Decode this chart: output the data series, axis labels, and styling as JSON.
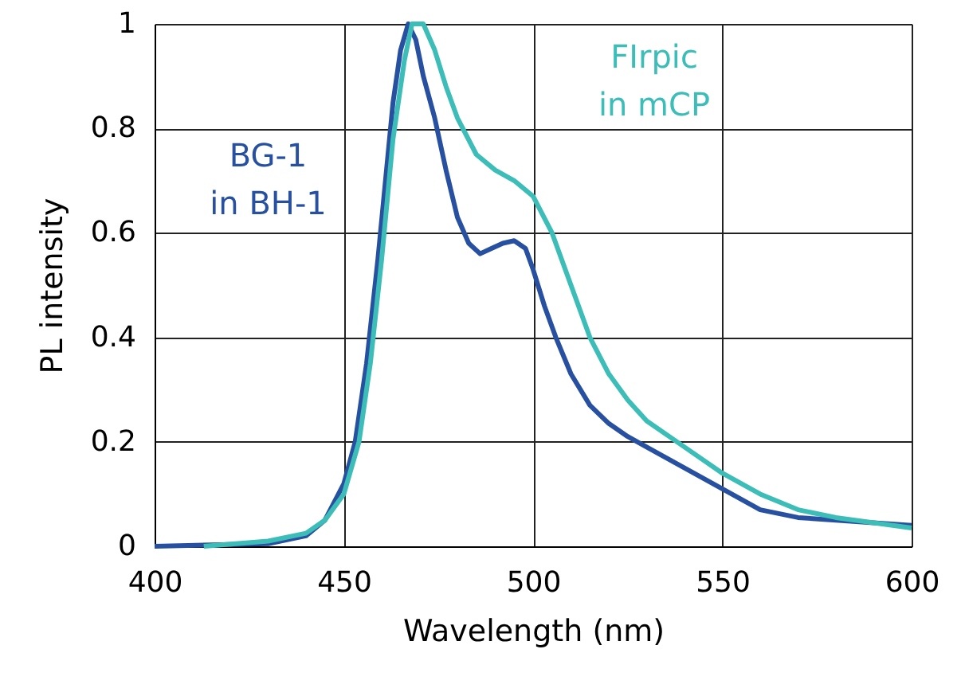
{
  "chart_data": {
    "type": "line",
    "xlabel": "Wavelength (nm)",
    "ylabel": "PL intensity",
    "xlim": [
      400,
      600
    ],
    "xticks": [
      400,
      450,
      500,
      550,
      600
    ],
    "ylim": [
      0,
      1
    ],
    "yticks": [
      0,
      0.2,
      0.4,
      0.6,
      0.8,
      1
    ],
    "grid": true,
    "line_style": "solid",
    "marker": "none",
    "series": [
      {
        "name": "BG-1\nin BH-1",
        "color": "#2850a0",
        "x": [
          400,
          430,
          440,
          445,
          450,
          453,
          456,
          459,
          461,
          463,
          465,
          467,
          469,
          471,
          474,
          477,
          480,
          483,
          486,
          489,
          492,
          495,
          498,
          500,
          503,
          506,
          510,
          515,
          520,
          525,
          530,
          540,
          550,
          560,
          570,
          580,
          590,
          600
        ],
        "values": [
          0,
          0.005,
          0.02,
          0.05,
          0.12,
          0.2,
          0.35,
          0.55,
          0.7,
          0.85,
          0.95,
          1.0,
          0.97,
          0.9,
          0.82,
          0.72,
          0.63,
          0.58,
          0.56,
          0.57,
          0.58,
          0.585,
          0.57,
          0.53,
          0.46,
          0.4,
          0.33,
          0.27,
          0.235,
          0.21,
          0.19,
          0.15,
          0.11,
          0.07,
          0.055,
          0.05,
          0.045,
          0.04
        ]
      },
      {
        "name": "FIrpic\nin mCP",
        "color": "#3cbdb8",
        "x": [
          413,
          430,
          440,
          445,
          450,
          454,
          457,
          460,
          463,
          466,
          468,
          471,
          474,
          477,
          480,
          485,
          490,
          495,
          500,
          505,
          510,
          515,
          520,
          525,
          530,
          540,
          550,
          560,
          570,
          580,
          590,
          600
        ],
        "values": [
          0,
          0.01,
          0.025,
          0.05,
          0.1,
          0.2,
          0.35,
          0.55,
          0.78,
          0.93,
          1.0,
          1.0,
          0.95,
          0.88,
          0.82,
          0.75,
          0.72,
          0.7,
          0.67,
          0.6,
          0.5,
          0.4,
          0.33,
          0.28,
          0.24,
          0.19,
          0.14,
          0.1,
          0.07,
          0.055,
          0.045,
          0.035
        ]
      }
    ]
  }
}
